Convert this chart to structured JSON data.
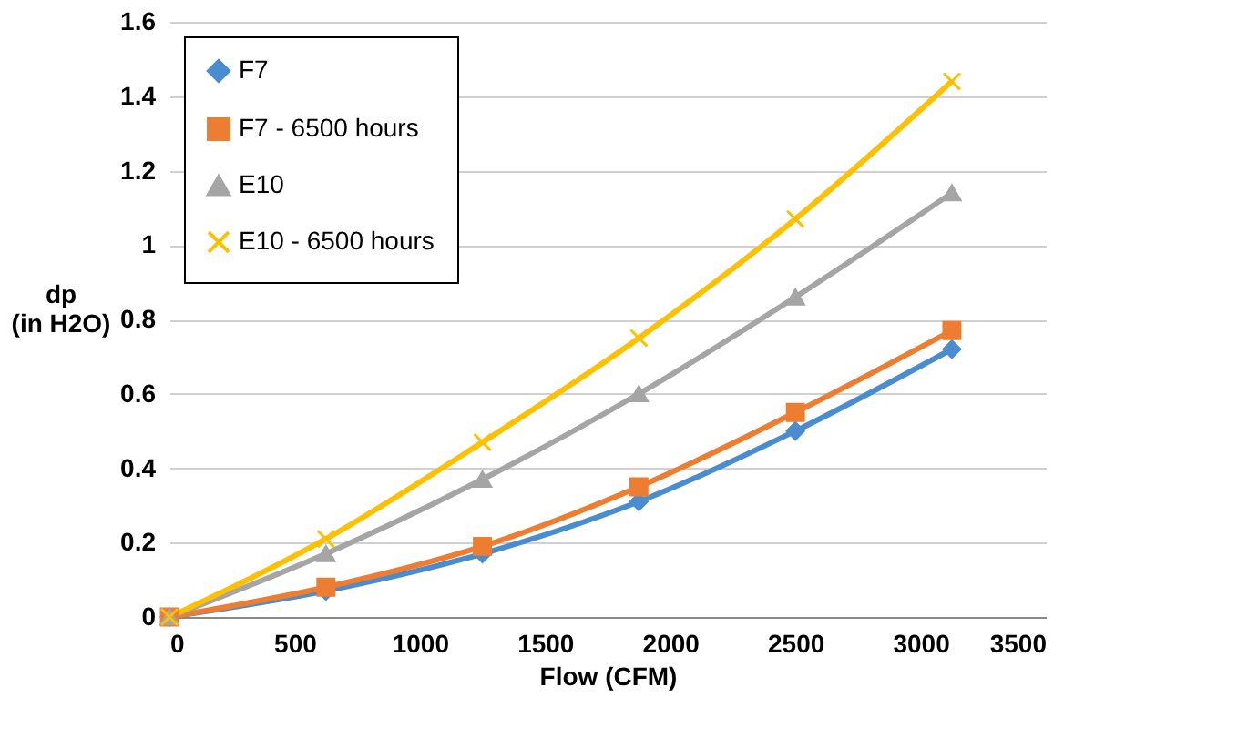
{
  "chart_data": {
    "type": "line",
    "xlabel": "Flow (CFM)",
    "ylabel": "dp\n(in H2O)",
    "x": [
      0,
      625,
      1250,
      1875,
      2500,
      3125
    ],
    "series": [
      {
        "name": "F7",
        "color": "#4a8cd0",
        "marker": "diamond",
        "values": [
          0,
          0.07,
          0.17,
          0.31,
          0.5,
          0.72
        ]
      },
      {
        "name": "F7 - 6500 hours",
        "color": "#ed7d31",
        "marker": "square",
        "values": [
          0,
          0.08,
          0.19,
          0.35,
          0.55,
          0.77
        ]
      },
      {
        "name": "E10",
        "color": "#a5a5a5",
        "marker": "triangle",
        "values": [
          0,
          0.17,
          0.37,
          0.6,
          0.86,
          1.14
        ]
      },
      {
        "name": "E10 - 6500 hours",
        "color": "#ffc000",
        "marker": "cross",
        "values": [
          0,
          0.21,
          0.47,
          0.75,
          1.07,
          1.44
        ]
      }
    ],
    "xlim": [
      0,
      3500
    ],
    "xticks": [
      0,
      500,
      1000,
      1500,
      2000,
      2500,
      3000,
      3500
    ],
    "ylim": [
      0,
      1.6
    ],
    "yticks": [
      0,
      0.2,
      0.4,
      0.6,
      0.8,
      1,
      1.2,
      1.4,
      1.6
    ],
    "grid": "y",
    "legend": "top left",
    "line_style": "solid"
  }
}
